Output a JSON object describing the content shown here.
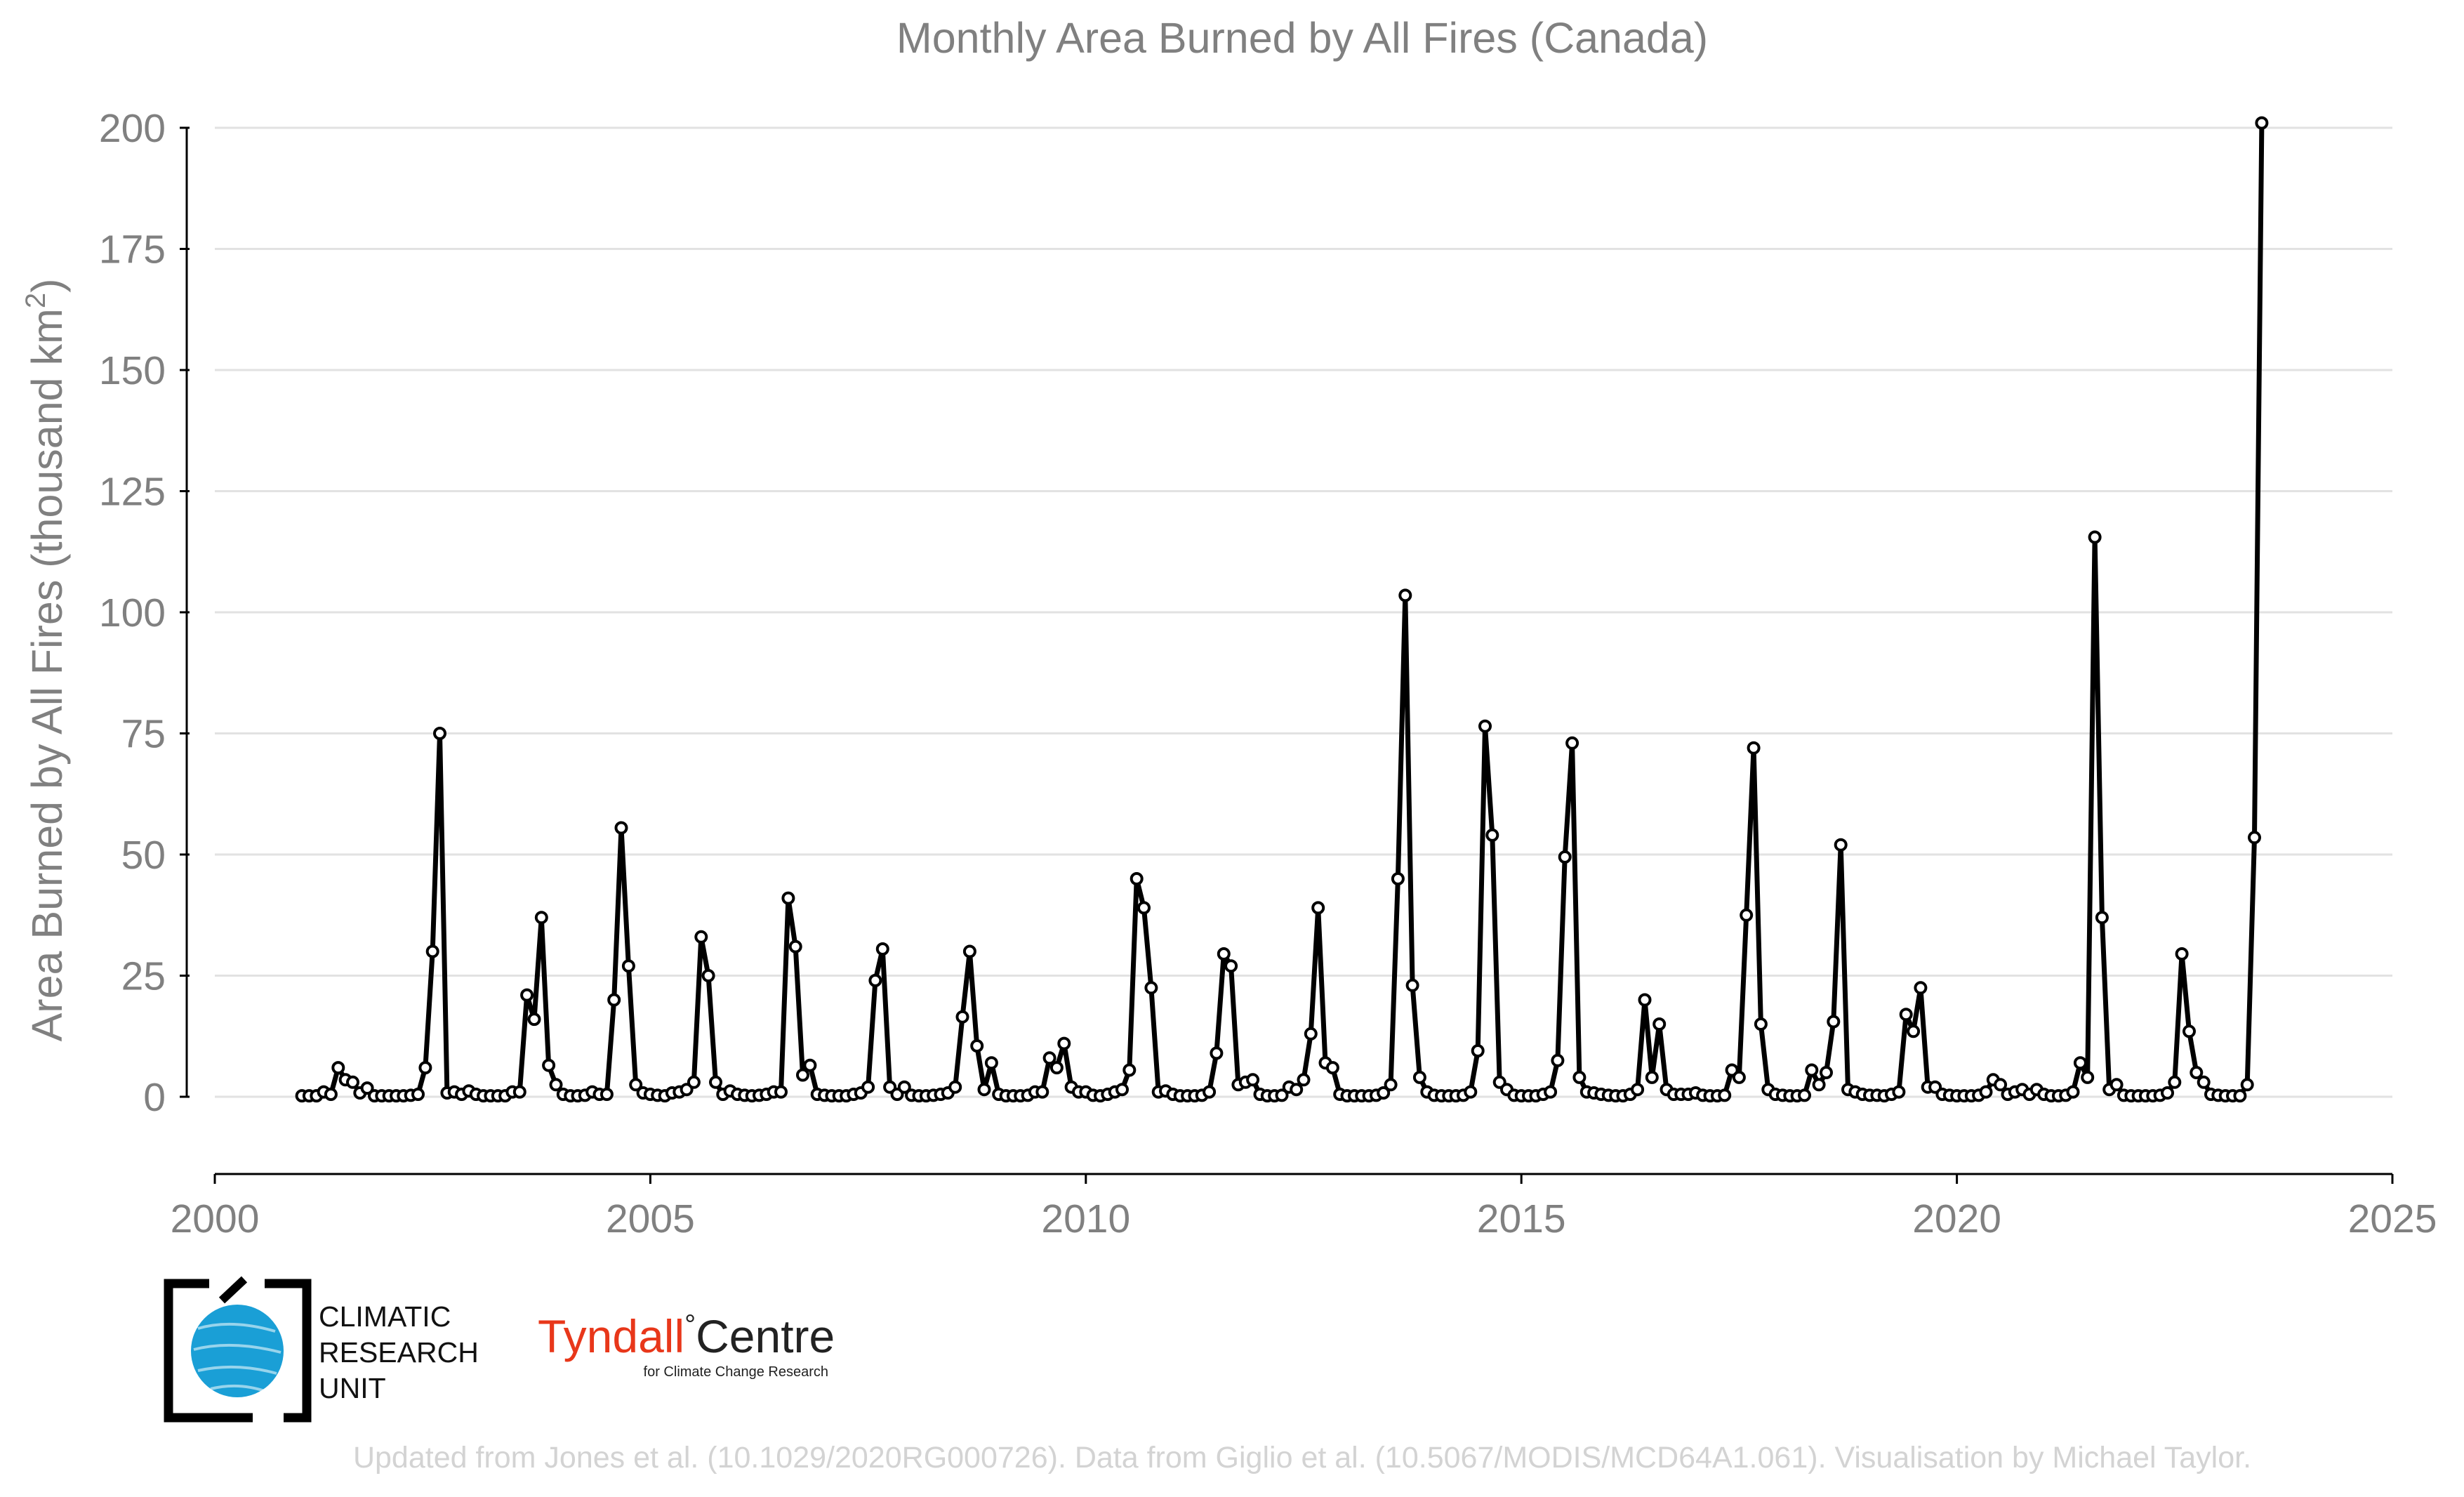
{
  "chart_data": {
    "type": "line",
    "title": "Monthly Area Burned by All Fires (Canada)",
    "ylabel": {
      "main": "Area Burned by All Fires (thousand km",
      "sup": "2",
      "close": ")"
    },
    "xlim": [
      2000,
      2025
    ],
    "ylim": [
      -15,
      205
    ],
    "x_ticks": [
      2000,
      2005,
      2010,
      2015,
      2020,
      2025
    ],
    "y_ticks": [
      0,
      25,
      50,
      75,
      100,
      125,
      150,
      175,
      200
    ],
    "grid": "horizontal",
    "start_year": 2001,
    "start_month": 1,
    "series": [
      {
        "values": [
          0.2,
          0.2,
          0.2,
          1.0,
          0.5,
          6.0,
          3.5,
          3.0,
          0.8,
          1.8,
          0.2,
          0.2,
          0.2,
          0.2,
          0.2,
          0.3,
          0.5,
          6.0,
          30.0,
          75.0,
          0.8,
          1.0,
          0.5,
          1.2,
          0.5,
          0.2,
          0.2,
          0.2,
          0.2,
          1.0,
          1.0,
          21.0,
          16.0,
          37.0,
          6.5,
          2.5,
          0.5,
          0.2,
          0.2,
          0.3,
          1.0,
          0.5,
          0.5,
          20.0,
          55.5,
          27.0,
          2.5,
          0.8,
          0.5,
          0.3,
          0.2,
          0.8,
          1.0,
          1.5,
          3.0,
          33.0,
          25.0,
          3.0,
          0.5,
          1.2,
          0.5,
          0.3,
          0.2,
          0.3,
          0.5,
          1.0,
          1.0,
          41.0,
          31.0,
          4.5,
          6.5,
          0.5,
          0.3,
          0.2,
          0.2,
          0.2,
          0.5,
          0.8,
          2.0,
          24.0,
          30.5,
          2.0,
          0.5,
          2.0,
          0.3,
          0.2,
          0.2,
          0.3,
          0.5,
          0.8,
          2.0,
          16.5,
          30.0,
          10.5,
          1.5,
          7.0,
          0.5,
          0.2,
          0.2,
          0.2,
          0.3,
          1.0,
          1.0,
          8.0,
          6.0,
          11.0,
          2.0,
          1.0,
          1.0,
          0.3,
          0.2,
          0.5,
          1.0,
          1.5,
          5.5,
          45.0,
          39.0,
          22.5,
          1.0,
          1.2,
          0.5,
          0.2,
          0.2,
          0.2,
          0.3,
          1.0,
          9.0,
          29.5,
          27.0,
          2.5,
          3.0,
          3.5,
          0.5,
          0.2,
          0.2,
          0.3,
          2.0,
          1.5,
          3.5,
          13.0,
          39.0,
          7.0,
          6.0,
          0.5,
          0.2,
          0.2,
          0.2,
          0.2,
          0.3,
          0.8,
          2.5,
          45.0,
          103.5,
          23.0,
          4.0,
          1.0,
          0.3,
          0.2,
          0.2,
          0.2,
          0.3,
          1.0,
          9.5,
          76.5,
          54.0,
          3.0,
          1.5,
          0.3,
          0.2,
          0.2,
          0.2,
          0.5,
          1.0,
          7.5,
          49.5,
          73.0,
          4.0,
          1.0,
          0.8,
          0.5,
          0.3,
          0.2,
          0.2,
          0.5,
          1.5,
          20.0,
          4.0,
          15.0,
          1.5,
          0.5,
          0.5,
          0.5,
          0.8,
          0.3,
          0.2,
          0.2,
          0.3,
          5.5,
          4.0,
          37.5,
          72.0,
          15.0,
          1.5,
          0.5,
          0.3,
          0.2,
          0.2,
          0.3,
          5.5,
          2.5,
          5.0,
          15.5,
          52.0,
          1.5,
          1.0,
          0.5,
          0.3,
          0.3,
          0.2,
          0.5,
          1.0,
          17.0,
          13.5,
          22.5,
          2.0,
          2.0,
          0.5,
          0.3,
          0.2,
          0.2,
          0.2,
          0.3,
          1.0,
          3.5,
          2.5,
          0.5,
          1.0,
          1.5,
          0.5,
          1.5,
          0.5,
          0.2,
          0.2,
          0.3,
          1.0,
          7.0,
          4.0,
          115.5,
          37.0,
          1.5,
          2.5,
          0.3,
          0.2,
          0.2,
          0.2,
          0.2,
          0.3,
          0.8,
          3.0,
          29.5,
          13.5,
          5.0,
          3.0,
          0.5,
          0.3,
          0.2,
          0.2,
          0.2,
          2.5,
          53.5,
          201.0
        ]
      }
    ]
  },
  "logos": {
    "cru": {
      "line1": "CLIMATIC",
      "line2": "RESEARCH",
      "line3": "UNIT",
      "globe_color": "#1a9fd6"
    },
    "tyndall": {
      "name_red": "Tyndall",
      "degree": "°",
      "name_dark": "Centre",
      "subtitle": "for Climate Change Research",
      "red_color": "#e8371a"
    }
  },
  "credit": "Updated from Jones et al. (10.1029/2020RG000726). Data from Giglio et al. (10.5067/MODIS/MCD64A1.061). Visualisation by Michael Taylor."
}
